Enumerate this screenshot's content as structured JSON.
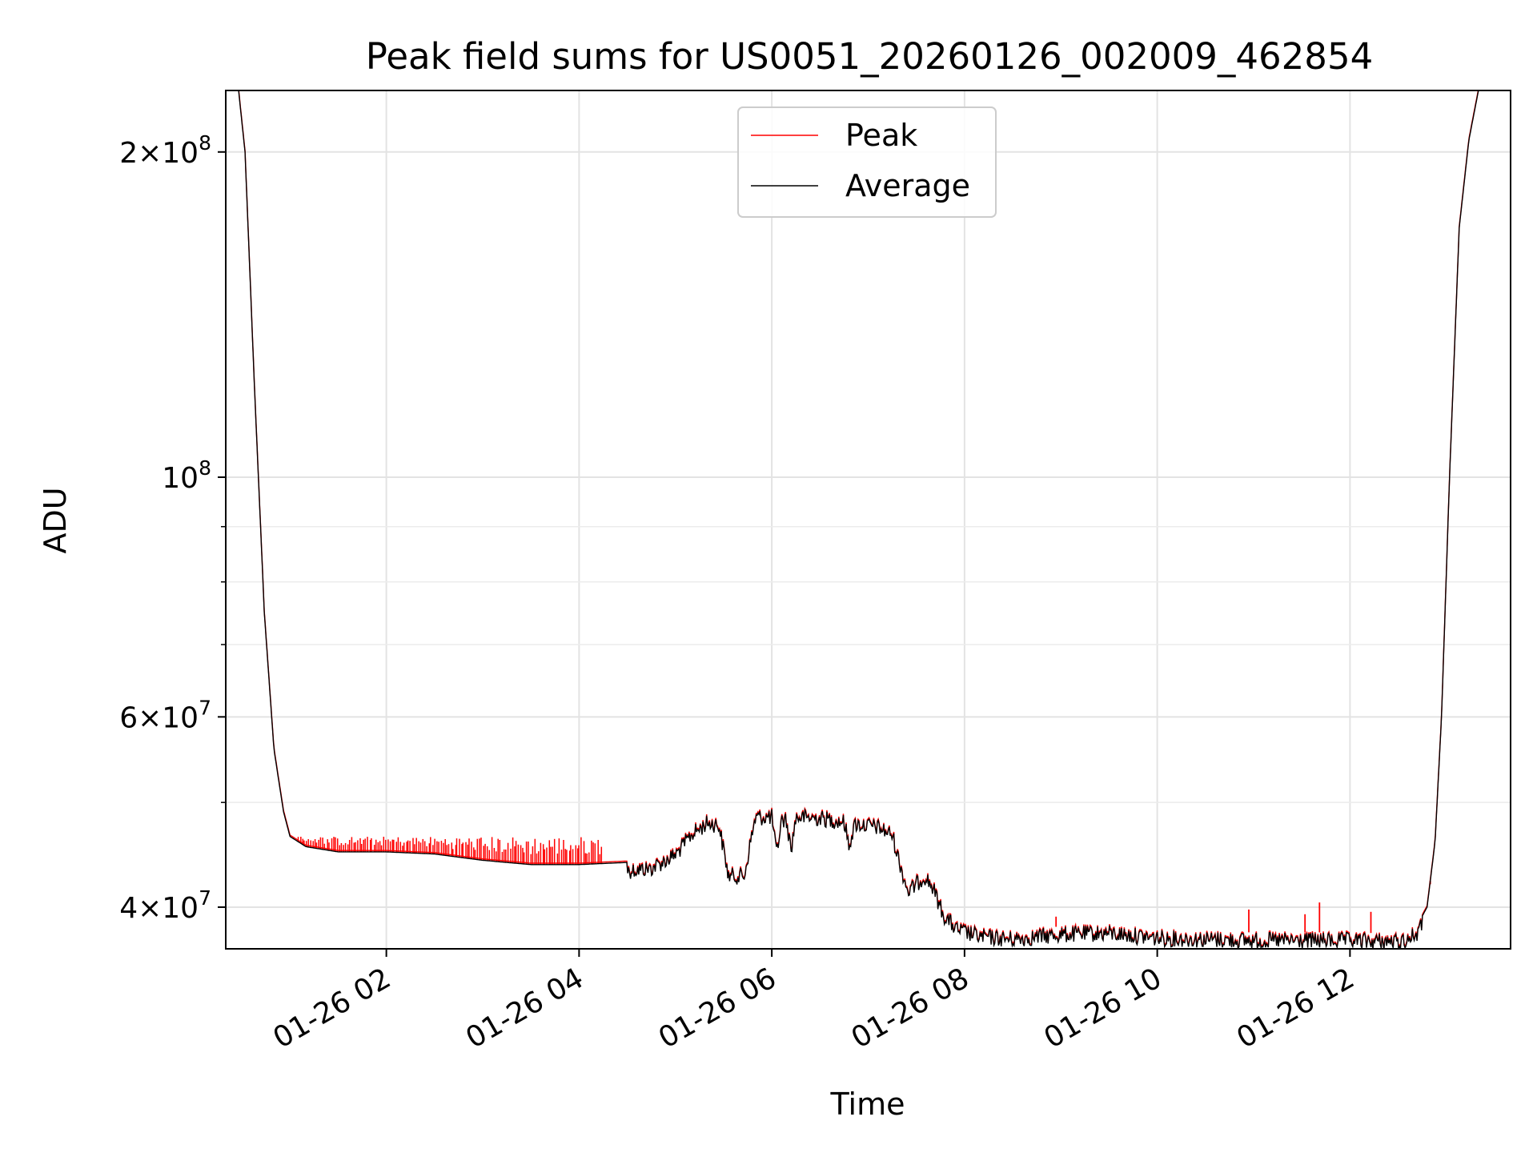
{
  "chart_data": {
    "type": "line",
    "title": "Peak field sums for US0051_20260126_002009_462854",
    "xlabel": "Time",
    "ylabel": "ADU",
    "y_scale": "log",
    "x_range": [
      "2026-01-26 00:20",
      "2026-01-26 13:40"
    ],
    "ylim": [
      36600000,
      228000000
    ],
    "grid": true,
    "legend": {
      "placement": "top-center",
      "entries": [
        "Peak",
        "Average"
      ]
    },
    "x_ticks": [
      {
        "value": "2026-01-26 02:00",
        "label": "01-26 02"
      },
      {
        "value": "2026-01-26 04:00",
        "label": "01-26 04"
      },
      {
        "value": "2026-01-26 06:00",
        "label": "01-26 06"
      },
      {
        "value": "2026-01-26 08:00",
        "label": "01-26 08"
      },
      {
        "value": "2026-01-26 10:00",
        "label": "01-26 10"
      },
      {
        "value": "2026-01-26 12:00",
        "label": "01-26 12"
      }
    ],
    "y_major_ticks": [
      {
        "value": 40000000,
        "mantissa": "4",
        "exponent": "7"
      },
      {
        "value": 60000000,
        "mantissa": "6",
        "exponent": "7"
      },
      {
        "value": 100000000,
        "mantissa": "",
        "exponent": "8"
      },
      {
        "value": 200000000,
        "mantissa": "2",
        "exponent": "8"
      }
    ],
    "y_minor_ticks": [
      50000000,
      70000000,
      80000000,
      90000000
    ],
    "series": [
      {
        "name": "Average",
        "color": "#000000",
        "points": [
          [
            "2026-01-26 00:20",
            228000000
          ],
          [
            "2026-01-26 00:28",
            228000000
          ],
          [
            "2026-01-26 00:32",
            200000000
          ],
          [
            "2026-01-26 00:38",
            120000000
          ],
          [
            "2026-01-26 00:44",
            75000000
          ],
          [
            "2026-01-26 00:50",
            56000000
          ],
          [
            "2026-01-26 00:56",
            49000000
          ],
          [
            "2026-01-26 01:00",
            46500000
          ],
          [
            "2026-01-26 01:10",
            45500000
          ],
          [
            "2026-01-26 01:30",
            45000000
          ],
          [
            "2026-01-26 02:00",
            45000000
          ],
          [
            "2026-01-26 02:30",
            44800000
          ],
          [
            "2026-01-26 03:00",
            44200000
          ],
          [
            "2026-01-26 03:30",
            43800000
          ],
          [
            "2026-01-26 04:00",
            43800000
          ],
          [
            "2026-01-26 04:30",
            44000000
          ],
          [
            "2026-01-26 04:45",
            44200000
          ],
          [
            "2026-01-26 05:00",
            45500000
          ],
          [
            "2026-01-26 05:10",
            47500000
          ],
          [
            "2026-01-26 05:20",
            48700000
          ],
          [
            "2026-01-26 05:27",
            48500000
          ],
          [
            "2026-01-26 05:30",
            46000000
          ],
          [
            "2026-01-26 05:33",
            43500000
          ],
          [
            "2026-01-26 05:43",
            43500000
          ],
          [
            "2026-01-26 05:47",
            47000000
          ],
          [
            "2026-01-26 05:50",
            49300000
          ],
          [
            "2026-01-26 06:00",
            49300000
          ],
          [
            "2026-01-26 06:03",
            45500000
          ],
          [
            "2026-01-26 06:06",
            49000000
          ],
          [
            "2026-01-26 06:09",
            49000000
          ],
          [
            "2026-01-26 06:12",
            46000000
          ],
          [
            "2026-01-26 06:15",
            49300000
          ],
          [
            "2026-01-26 06:30",
            49200000
          ],
          [
            "2026-01-26 06:45",
            48800000
          ],
          [
            "2026-01-26 06:48",
            46500000
          ],
          [
            "2026-01-26 06:52",
            48600000
          ],
          [
            "2026-01-26 07:05",
            48300000
          ],
          [
            "2026-01-26 07:15",
            47500000
          ],
          [
            "2026-01-26 07:20",
            44500000
          ],
          [
            "2026-01-26 07:25",
            42000000
          ],
          [
            "2026-01-26 07:35",
            43500000
          ],
          [
            "2026-01-26 07:40",
            42500000
          ],
          [
            "2026-01-26 07:47",
            40000000
          ],
          [
            "2026-01-26 07:55",
            38800000
          ],
          [
            "2026-01-26 08:10",
            38200000
          ],
          [
            "2026-01-26 08:30",
            38000000
          ],
          [
            "2026-01-26 09:00",
            38400000
          ],
          [
            "2026-01-26 09:30",
            38500000
          ],
          [
            "2026-01-26 10:00",
            38100000
          ],
          [
            "2026-01-26 11:00",
            37900000
          ],
          [
            "2026-01-26 12:00",
            37900000
          ],
          [
            "2026-01-26 12:30",
            37800000
          ],
          [
            "2026-01-26 12:36",
            38000000
          ],
          [
            "2026-01-26 12:42",
            38500000
          ],
          [
            "2026-01-26 12:48",
            40000000
          ],
          [
            "2026-01-26 12:53",
            46000000
          ],
          [
            "2026-01-26 12:57",
            60000000
          ],
          [
            "2026-01-26 13:02",
            100000000
          ],
          [
            "2026-01-26 13:08",
            170000000
          ],
          [
            "2026-01-26 13:14",
            205000000
          ],
          [
            "2026-01-26 13:20",
            228000000
          ],
          [
            "2026-01-26 13:40",
            228000000
          ]
        ]
      },
      {
        "name": "Peak",
        "color": "#ff0000",
        "spike_ranges": [
          {
            "from": "2026-01-26 01:05",
            "to": "2026-01-26 04:15",
            "peak": 46200000
          }
        ],
        "spikes": [
          [
            "2026-01-26 08:57",
            39200000
          ],
          [
            "2026-01-26 10:57",
            39800000
          ],
          [
            "2026-01-26 11:32",
            39400000
          ],
          [
            "2026-01-26 11:41",
            40400000
          ],
          [
            "2026-01-26 12:13",
            39600000
          ],
          [
            "2026-01-26 12:50",
            42000000
          ]
        ]
      }
    ]
  }
}
